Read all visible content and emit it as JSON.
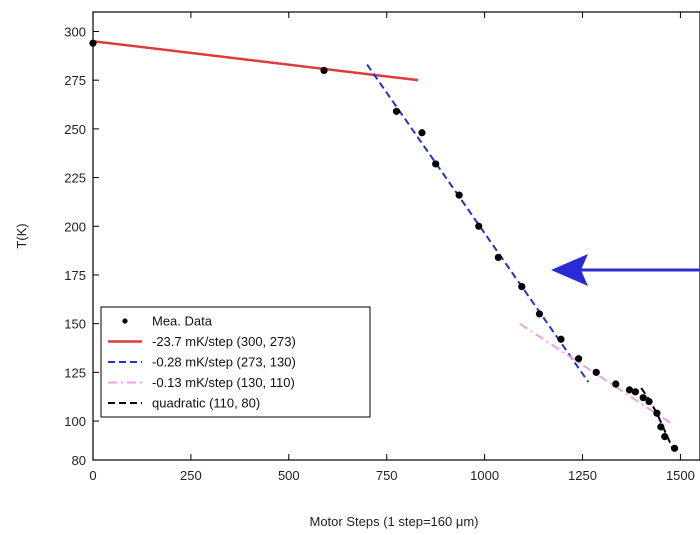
{
  "chart_data": {
    "type": "scatter",
    "xlabel": "Motor Steps (1 step=160 μm)",
    "ylabel": "T(K)",
    "xlim": [
      0,
      1550
    ],
    "ylim": [
      80,
      310
    ],
    "x_ticks": [
      0,
      250,
      500,
      750,
      1000,
      1250,
      1500
    ],
    "y_ticks": [
      80,
      100,
      125,
      150,
      175,
      200,
      225,
      250,
      275,
      300
    ],
    "grid": false,
    "legend_position": "lower-left",
    "measured": {
      "name": "Mea. Data",
      "color": "#000000",
      "points": [
        [
          0,
          294
        ],
        [
          590,
          280
        ],
        [
          775,
          259
        ],
        [
          840,
          248
        ],
        [
          875,
          232
        ],
        [
          935,
          216
        ],
        [
          985,
          200
        ],
        [
          1035,
          184
        ],
        [
          1095,
          169
        ],
        [
          1140,
          155
        ],
        [
          1195,
          142
        ],
        [
          1240,
          132
        ],
        [
          1285,
          125
        ],
        [
          1335,
          119
        ],
        [
          1370,
          116
        ],
        [
          1385,
          115
        ],
        [
          1405,
          112
        ],
        [
          1420,
          110
        ],
        [
          1440,
          104
        ],
        [
          1450,
          97
        ],
        [
          1460,
          92
        ],
        [
          1485,
          86
        ]
      ]
    },
    "fits": [
      {
        "name": "-23.7 mK/step (300, 273)",
        "color": "#e03a3a",
        "style": "solid",
        "points": [
          [
            0,
            295
          ],
          [
            830,
            275
          ]
        ]
      },
      {
        "name": "-0.28 mK/step (273, 130)",
        "color": "#2233cc",
        "style": "dashed",
        "points": [
          [
            700,
            283
          ],
          [
            1265,
            120
          ]
        ]
      },
      {
        "name": "-0.13 mK/step (130, 110)",
        "color": "#ef9fef",
        "style": "dashdot",
        "points": [
          [
            1090,
            150
          ],
          [
            1475,
            99
          ]
        ]
      },
      {
        "name": "quadratic (110, 80)",
        "color": "#000000",
        "style": "dashed",
        "points": [
          [
            1400,
            117
          ],
          [
            1420,
            111
          ],
          [
            1440,
            104
          ],
          [
            1460,
            95
          ],
          [
            1480,
            86
          ]
        ]
      }
    ],
    "annotation": {
      "type": "arrow",
      "color": "#2b2bd6",
      "direction": "left"
    }
  }
}
